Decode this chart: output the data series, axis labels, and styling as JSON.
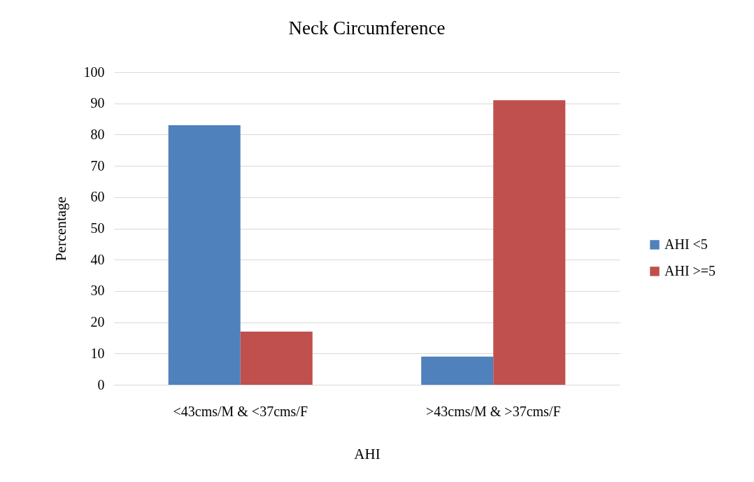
{
  "chart_data": {
    "type": "bar",
    "title": "Neck Circumference",
    "xlabel": "AHI",
    "ylabel": "Percentage",
    "categories": [
      "<43cms/M & <37cms/F",
      ">43cms/M & >37cms/F"
    ],
    "series": [
      {
        "name": "AHI <5",
        "color": "#4f81bd",
        "values": [
          83,
          9
        ]
      },
      {
        "name": "AHI >=5",
        "color": "#c0504d",
        "values": [
          17,
          91
        ]
      }
    ],
    "ylim": [
      0,
      100
    ],
    "yticks": [
      0,
      10,
      20,
      30,
      40,
      50,
      60,
      70,
      80,
      90,
      100
    ],
    "grid": "y",
    "legend": "right"
  }
}
